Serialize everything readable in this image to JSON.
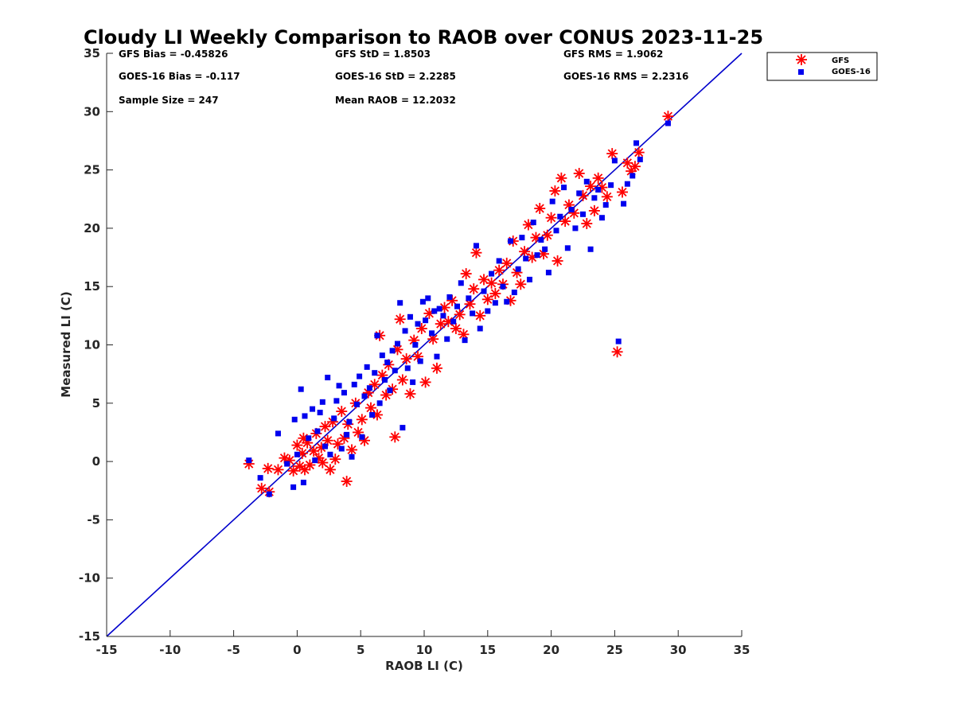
{
  "chart_data": {
    "type": "scatter",
    "title": "Cloudy LI Weekly Comparison to RAOB over CONUS 2023-11-25",
    "xlabel": "RAOB LI (C)",
    "ylabel": "Measured LI (C)",
    "xlim": [
      -15,
      35
    ],
    "ylim": [
      -15,
      35
    ],
    "xticks": [
      -15,
      -10,
      -5,
      0,
      5,
      10,
      15,
      20,
      25,
      30,
      35
    ],
    "yticks": [
      -15,
      -10,
      -5,
      0,
      5,
      10,
      15,
      20,
      25,
      30,
      35
    ],
    "grid": false,
    "legend_position": "top-right (outside plot)",
    "reference_line": {
      "type": "y=x",
      "color": "#0000cc"
    },
    "stats": {
      "gfs_bias": "GFS Bias = -0.45826",
      "goes_bias": "GOES-16 Bias = -0.117",
      "sample_size": "Sample Size = 247",
      "gfs_std": "GFS StD = 1.8503",
      "goes_std": "GOES-16 StD = 2.2285",
      "mean_raob": "Mean RAOB = 12.2032",
      "gfs_rms": "GFS RMS = 1.9062",
      "goes_rms": "GOES-16 RMS = 2.2316"
    },
    "series": [
      {
        "name": "GFS",
        "marker": "asterisk",
        "color": "#ff0000",
        "points": [
          [
            -3.8,
            -0.2
          ],
          [
            -2.8,
            -2.3
          ],
          [
            -2.3,
            -0.6
          ],
          [
            -2.2,
            -2.6
          ],
          [
            -1.5,
            -0.7
          ],
          [
            -1.0,
            0.3
          ],
          [
            -0.6,
            0.1
          ],
          [
            -0.3,
            -0.8
          ],
          [
            0.0,
            1.4
          ],
          [
            0.2,
            -0.4
          ],
          [
            0.4,
            0.7
          ],
          [
            0.5,
            2.0
          ],
          [
            0.6,
            -0.7
          ],
          [
            0.8,
            1.6
          ],
          [
            1.0,
            -0.3
          ],
          [
            1.3,
            0.9
          ],
          [
            1.5,
            2.4
          ],
          [
            1.7,
            0.3
          ],
          [
            1.9,
            1.2
          ],
          [
            2.0,
            -0.1
          ],
          [
            2.2,
            3.0
          ],
          [
            2.4,
            1.8
          ],
          [
            2.6,
            -0.7
          ],
          [
            2.8,
            3.4
          ],
          [
            3.0,
            0.2
          ],
          [
            3.2,
            1.5
          ],
          [
            3.5,
            4.3
          ],
          [
            3.7,
            2.0
          ],
          [
            3.9,
            -1.7
          ],
          [
            4.0,
            3.2
          ],
          [
            4.3,
            1.0
          ],
          [
            4.6,
            5.0
          ],
          [
            4.8,
            2.5
          ],
          [
            5.1,
            3.6
          ],
          [
            5.3,
            1.8
          ],
          [
            5.6,
            5.9
          ],
          [
            5.8,
            4.6
          ],
          [
            6.1,
            6.6
          ],
          [
            6.3,
            4.0
          ],
          [
            6.5,
            10.8
          ],
          [
            6.7,
            7.4
          ],
          [
            7.0,
            5.7
          ],
          [
            7.2,
            8.3
          ],
          [
            7.5,
            6.2
          ],
          [
            7.7,
            2.1
          ],
          [
            7.9,
            9.6
          ],
          [
            8.1,
            12.2
          ],
          [
            8.3,
            7.0
          ],
          [
            8.6,
            8.8
          ],
          [
            8.9,
            5.8
          ],
          [
            9.2,
            10.4
          ],
          [
            9.5,
            9.0
          ],
          [
            9.8,
            11.4
          ],
          [
            10.1,
            6.8
          ],
          [
            10.4,
            12.7
          ],
          [
            10.7,
            10.5
          ],
          [
            11.0,
            8.0
          ],
          [
            11.3,
            11.8
          ],
          [
            11.6,
            13.2
          ],
          [
            11.9,
            12.0
          ],
          [
            12.2,
            13.8
          ],
          [
            12.5,
            11.4
          ],
          [
            12.8,
            12.6
          ],
          [
            13.1,
            10.9
          ],
          [
            13.3,
            16.1
          ],
          [
            13.6,
            13.5
          ],
          [
            13.9,
            14.8
          ],
          [
            14.1,
            17.9
          ],
          [
            14.4,
            12.5
          ],
          [
            14.7,
            15.6
          ],
          [
            15.0,
            13.9
          ],
          [
            15.3,
            15.3
          ],
          [
            15.6,
            14.4
          ],
          [
            15.9,
            16.4
          ],
          [
            16.2,
            15.2
          ],
          [
            16.5,
            17.0
          ],
          [
            16.8,
            13.8
          ],
          [
            17.0,
            18.9
          ],
          [
            17.3,
            16.2
          ],
          [
            17.6,
            15.2
          ],
          [
            17.9,
            18.0
          ],
          [
            18.2,
            20.3
          ],
          [
            18.5,
            17.5
          ],
          [
            18.8,
            19.2
          ],
          [
            19.1,
            21.7
          ],
          [
            19.4,
            17.8
          ],
          [
            19.7,
            19.4
          ],
          [
            20.0,
            20.9
          ],
          [
            20.3,
            23.2
          ],
          [
            20.5,
            17.2
          ],
          [
            20.8,
            24.3
          ],
          [
            21.1,
            20.6
          ],
          [
            21.4,
            22.0
          ],
          [
            21.8,
            21.3
          ],
          [
            22.2,
            24.7
          ],
          [
            22.5,
            22.8
          ],
          [
            22.8,
            20.4
          ],
          [
            23.1,
            23.6
          ],
          [
            23.4,
            21.5
          ],
          [
            23.7,
            24.3
          ],
          [
            24.0,
            23.5
          ],
          [
            24.4,
            22.7
          ],
          [
            24.8,
            26.4
          ],
          [
            25.2,
            9.4
          ],
          [
            25.6,
            23.1
          ],
          [
            26.0,
            25.6
          ],
          [
            26.3,
            24.9
          ],
          [
            26.6,
            25.3
          ],
          [
            26.9,
            26.5
          ],
          [
            29.2,
            29.6
          ]
        ]
      },
      {
        "name": "GOES-16",
        "marker": "square",
        "color": "#0000ee",
        "points": [
          [
            -3.8,
            0.1
          ],
          [
            -2.9,
            -1.4
          ],
          [
            -2.2,
            -2.8
          ],
          [
            -1.5,
            2.4
          ],
          [
            -0.8,
            -0.2
          ],
          [
            -0.3,
            -2.2
          ],
          [
            -0.2,
            3.6
          ],
          [
            0.0,
            0.6
          ],
          [
            0.3,
            6.2
          ],
          [
            0.5,
            -1.8
          ],
          [
            0.6,
            3.9
          ],
          [
            0.9,
            2.0
          ],
          [
            1.2,
            4.5
          ],
          [
            1.4,
            0.1
          ],
          [
            1.6,
            2.6
          ],
          [
            1.8,
            4.2
          ],
          [
            2.0,
            5.1
          ],
          [
            2.2,
            1.3
          ],
          [
            2.4,
            7.2
          ],
          [
            2.6,
            0.6
          ],
          [
            2.9,
            3.7
          ],
          [
            3.1,
            5.2
          ],
          [
            3.3,
            6.5
          ],
          [
            3.5,
            1.1
          ],
          [
            3.7,
            5.9
          ],
          [
            3.9,
            2.3
          ],
          [
            4.1,
            3.4
          ],
          [
            4.3,
            0.4
          ],
          [
            4.5,
            6.6
          ],
          [
            4.7,
            4.9
          ],
          [
            4.9,
            7.3
          ],
          [
            5.1,
            2.1
          ],
          [
            5.3,
            5.6
          ],
          [
            5.5,
            8.1
          ],
          [
            5.7,
            6.3
          ],
          [
            5.9,
            4.0
          ],
          [
            6.1,
            7.6
          ],
          [
            6.3,
            10.8
          ],
          [
            6.5,
            5.0
          ],
          [
            6.7,
            9.1
          ],
          [
            6.9,
            7.0
          ],
          [
            7.1,
            8.5
          ],
          [
            7.3,
            6.1
          ],
          [
            7.5,
            9.5
          ],
          [
            7.7,
            7.8
          ],
          [
            7.9,
            10.1
          ],
          [
            8.1,
            13.6
          ],
          [
            8.3,
            2.9
          ],
          [
            8.5,
            11.2
          ],
          [
            8.7,
            8.0
          ],
          [
            8.9,
            12.4
          ],
          [
            9.1,
            6.8
          ],
          [
            9.3,
            10.0
          ],
          [
            9.5,
            11.8
          ],
          [
            9.7,
            8.6
          ],
          [
            9.9,
            13.7
          ],
          [
            10.1,
            12.1
          ],
          [
            10.3,
            14.0
          ],
          [
            10.6,
            11.0
          ],
          [
            10.8,
            12.9
          ],
          [
            11.0,
            9.0
          ],
          [
            11.2,
            13.1
          ],
          [
            11.5,
            12.5
          ],
          [
            11.8,
            10.5
          ],
          [
            12.0,
            14.1
          ],
          [
            12.3,
            12.0
          ],
          [
            12.6,
            13.3
          ],
          [
            12.9,
            15.3
          ],
          [
            13.2,
            10.4
          ],
          [
            13.5,
            14.0
          ],
          [
            13.8,
            12.7
          ],
          [
            14.1,
            18.5
          ],
          [
            14.4,
            11.4
          ],
          [
            14.7,
            14.6
          ],
          [
            15.0,
            12.9
          ],
          [
            15.3,
            16.1
          ],
          [
            15.6,
            13.6
          ],
          [
            15.9,
            17.2
          ],
          [
            16.2,
            15.0
          ],
          [
            16.5,
            13.7
          ],
          [
            16.8,
            18.9
          ],
          [
            17.1,
            14.5
          ],
          [
            17.4,
            16.5
          ],
          [
            17.7,
            19.2
          ],
          [
            18.0,
            17.4
          ],
          [
            18.3,
            15.6
          ],
          [
            18.6,
            20.5
          ],
          [
            18.9,
            17.7
          ],
          [
            19.2,
            19.0
          ],
          [
            19.5,
            18.2
          ],
          [
            19.8,
            16.2
          ],
          [
            20.1,
            22.3
          ],
          [
            20.4,
            19.8
          ],
          [
            20.7,
            21.0
          ],
          [
            21.0,
            23.5
          ],
          [
            21.3,
            18.3
          ],
          [
            21.6,
            21.6
          ],
          [
            21.9,
            20.0
          ],
          [
            22.2,
            23.0
          ],
          [
            22.5,
            21.2
          ],
          [
            22.8,
            24.0
          ],
          [
            23.1,
            18.2
          ],
          [
            23.4,
            22.6
          ],
          [
            23.7,
            23.3
          ],
          [
            24.0,
            20.9
          ],
          [
            24.3,
            22.0
          ],
          [
            24.7,
            23.7
          ],
          [
            25.0,
            25.8
          ],
          [
            25.3,
            10.3
          ],
          [
            25.7,
            22.1
          ],
          [
            26.0,
            23.8
          ],
          [
            26.4,
            24.5
          ],
          [
            26.7,
            27.3
          ],
          [
            27.0,
            25.9
          ],
          [
            29.2,
            29.0
          ]
        ]
      }
    ]
  }
}
